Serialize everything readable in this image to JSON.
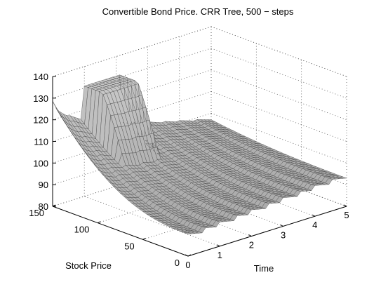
{
  "chart_data": {
    "type": "surface",
    "title": "Convertible Bond Price. CRR Tree, 500 − steps",
    "xlabel": "Time",
    "ylabel": "Stock Price",
    "zlabel": "",
    "xlim": [
      0,
      5
    ],
    "ylim": [
      0,
      150
    ],
    "zlim": [
      80,
      140
    ],
    "x_ticks": [
      "0",
      "1",
      "2",
      "3",
      "4",
      "5"
    ],
    "y_ticks": [
      "0",
      "50",
      "100",
      "150"
    ],
    "z_ticks": [
      "80",
      "90",
      "100",
      "110",
      "120",
      "130",
      "140"
    ],
    "grid": true,
    "surface_color": "#c0c0c0",
    "mesh_color": "#3a3a3a",
    "coupon_times": [
      0.5,
      1,
      1.5,
      2,
      2.5,
      3,
      3.5,
      4,
      4.5
    ],
    "conversion_time": 1.0,
    "price_floor_at_maturity": 93,
    "price_at_t0_s0": 88,
    "price_at_t0_s150": 128,
    "plateau_level": 131
  }
}
